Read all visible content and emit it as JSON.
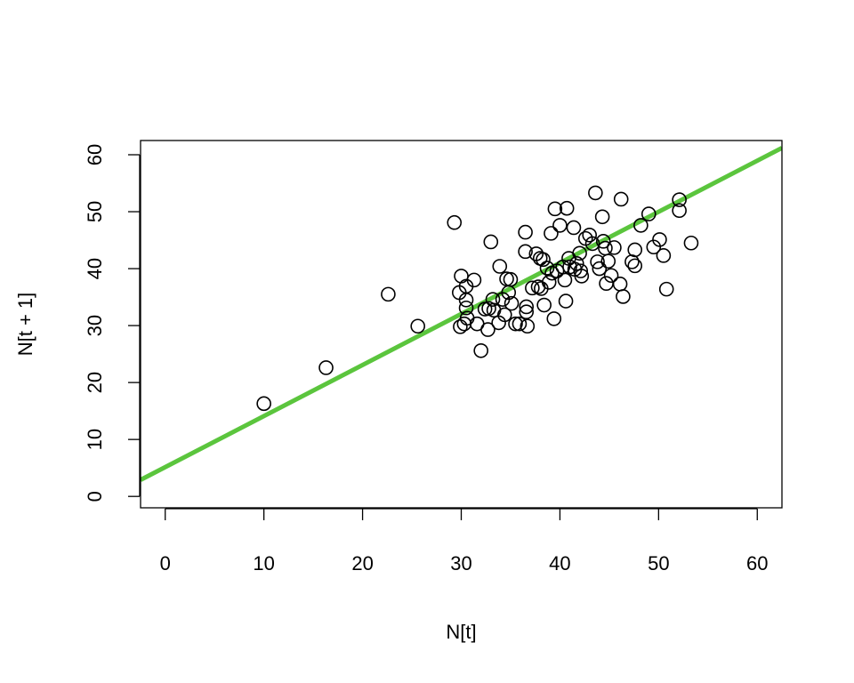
{
  "chart_data": {
    "type": "scatter",
    "title": "",
    "xlabel": "N[t]",
    "ylabel": "N[t + 1]",
    "xlim": [
      -2.5,
      62.5
    ],
    "ylim": [
      -2,
      62.5
    ],
    "x_ticks": [
      0,
      10,
      20,
      30,
      40,
      50,
      60
    ],
    "y_ticks": [
      0,
      10,
      20,
      30,
      40,
      50,
      60
    ],
    "grid": false,
    "series": [
      {
        "marker": "open-circle",
        "color": "#000000",
        "points": [
          [
            10.0,
            16.3
          ],
          [
            16.3,
            22.6
          ],
          [
            22.6,
            35.5
          ],
          [
            25.6,
            29.9
          ],
          [
            29.3,
            48.1
          ],
          [
            29.8,
            35.8
          ],
          [
            30.0,
            38.7
          ],
          [
            29.9,
            29.8
          ],
          [
            30.3,
            30.3
          ],
          [
            30.5,
            36.9
          ],
          [
            30.5,
            34.5
          ],
          [
            30.5,
            33.1
          ],
          [
            30.6,
            31.3
          ],
          [
            31.3,
            38.0
          ],
          [
            31.6,
            30.3
          ],
          [
            32.0,
            25.6
          ],
          [
            32.4,
            32.9
          ],
          [
            32.7,
            29.3
          ],
          [
            32.8,
            33.0
          ],
          [
            33.0,
            44.7
          ],
          [
            33.2,
            34.6
          ],
          [
            33.3,
            32.7
          ],
          [
            33.8,
            30.5
          ],
          [
            33.9,
            40.4
          ],
          [
            34.2,
            34.6
          ],
          [
            34.4,
            31.9
          ],
          [
            34.6,
            38.2
          ],
          [
            34.8,
            35.8
          ],
          [
            35.0,
            38.1
          ],
          [
            35.1,
            33.9
          ],
          [
            35.5,
            30.3
          ],
          [
            35.9,
            30.3
          ],
          [
            36.5,
            46.4
          ],
          [
            36.5,
            43.0
          ],
          [
            36.6,
            33.3
          ],
          [
            36.6,
            32.4
          ],
          [
            36.7,
            29.9
          ],
          [
            37.2,
            36.6
          ],
          [
            37.6,
            42.6
          ],
          [
            37.8,
            36.8
          ],
          [
            38.0,
            41.8
          ],
          [
            38.1,
            36.5
          ],
          [
            38.3,
            41.6
          ],
          [
            38.4,
            33.6
          ],
          [
            38.7,
            40.1
          ],
          [
            38.9,
            37.6
          ],
          [
            39.1,
            46.2
          ],
          [
            39.2,
            39.2
          ],
          [
            39.4,
            31.2
          ],
          [
            39.5,
            50.5
          ],
          [
            39.7,
            39.6
          ],
          [
            40.0,
            47.6
          ],
          [
            40.3,
            40.3
          ],
          [
            40.5,
            38.0
          ],
          [
            40.6,
            34.3
          ],
          [
            40.7,
            50.6
          ],
          [
            40.9,
            41.8
          ],
          [
            41.0,
            40.3
          ],
          [
            41.4,
            47.2
          ],
          [
            41.5,
            39.9
          ],
          [
            41.7,
            40.9
          ],
          [
            42.0,
            42.7
          ],
          [
            42.1,
            39.6
          ],
          [
            42.2,
            38.7
          ],
          [
            42.6,
            45.3
          ],
          [
            43.0,
            45.9
          ],
          [
            43.3,
            44.4
          ],
          [
            43.6,
            53.3
          ],
          [
            43.8,
            41.2
          ],
          [
            44.0,
            40.0
          ],
          [
            44.3,
            49.1
          ],
          [
            44.4,
            44.8
          ],
          [
            44.6,
            43.6
          ],
          [
            44.7,
            37.4
          ],
          [
            44.9,
            41.3
          ],
          [
            45.2,
            38.8
          ],
          [
            45.5,
            43.7
          ],
          [
            46.1,
            37.3
          ],
          [
            46.2,
            52.2
          ],
          [
            46.4,
            35.1
          ],
          [
            47.3,
            41.2
          ],
          [
            47.6,
            40.5
          ],
          [
            47.6,
            43.3
          ],
          [
            48.2,
            47.6
          ],
          [
            49.0,
            49.6
          ],
          [
            49.5,
            43.8
          ],
          [
            50.1,
            45.1
          ],
          [
            50.5,
            42.3
          ],
          [
            50.8,
            36.4
          ],
          [
            52.1,
            52.1
          ],
          [
            52.1,
            50.2
          ],
          [
            53.3,
            44.5
          ]
        ]
      }
    ],
    "regression_line": {
      "color": "#5bc53d",
      "points": [
        [
          -2.5,
          2.9
        ],
        [
          62.5,
          61.2
        ]
      ]
    }
  }
}
